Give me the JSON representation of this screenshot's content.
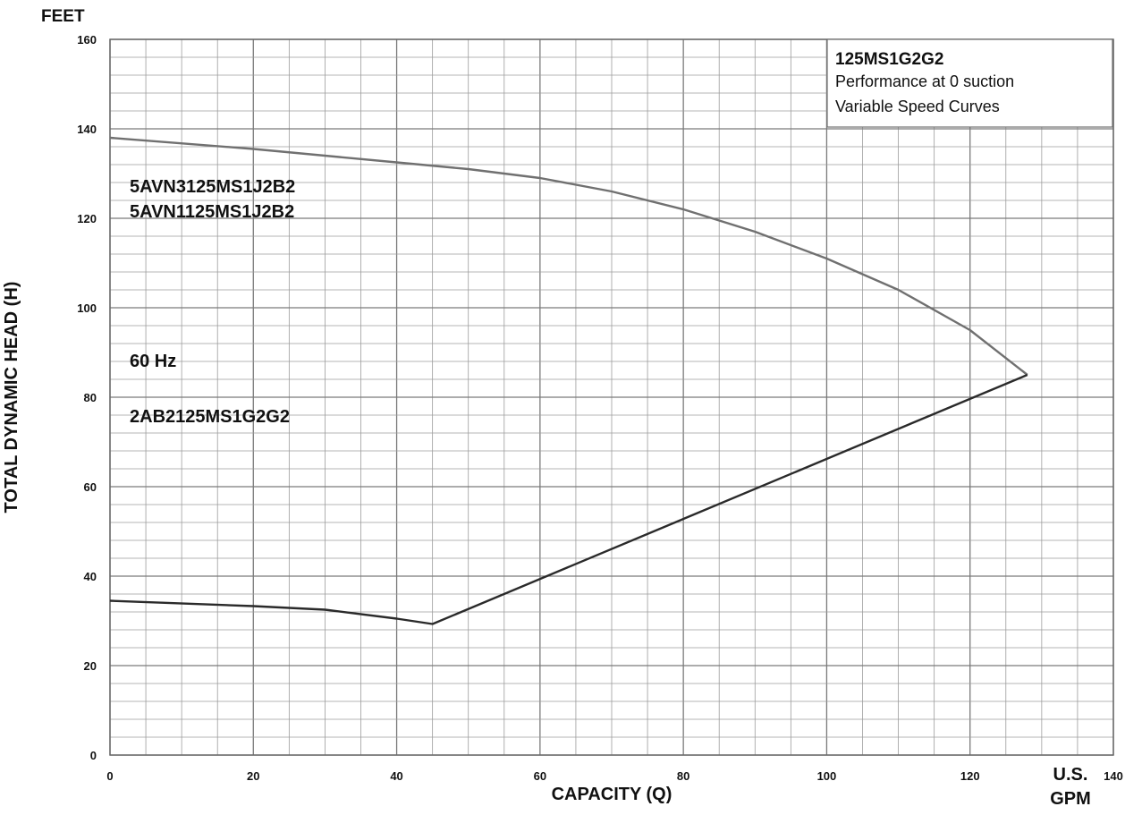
{
  "chart_data": {
    "type": "line",
    "y_unit_label": "FEET",
    "xlabel": "CAPACITY (Q)",
    "ylabel": "TOTAL DYNAMIC HEAD (H)",
    "x_unit_label": [
      "U.S.",
      "GPM"
    ],
    "xlim": [
      0,
      140
    ],
    "ylim": [
      0,
      160
    ],
    "x_major_step": 20,
    "y_major_step": 20,
    "grid": true,
    "x_ticks": [
      "0",
      "20",
      "40",
      "60",
      "80",
      "100",
      "120",
      "140"
    ],
    "y_ticks": [
      "0",
      "20",
      "40",
      "60",
      "80",
      "100",
      "120",
      "140",
      "160"
    ],
    "info_box": {
      "title": "125MS1G2G2",
      "line1": "Performance at 0 suction",
      "line2": "Variable Speed Curves"
    },
    "annotations": {
      "model_a": "5AVN3125MS1J2B2",
      "model_b": "5AVN1125MS1J2B2",
      "frequency": "60 Hz",
      "model_c": "2AB2125MS1G2G2"
    },
    "series": [
      {
        "color": "#707070",
        "points": [
          [
            0,
            138
          ],
          [
            20,
            135.5
          ],
          [
            40,
            132.5
          ],
          [
            50,
            131
          ],
          [
            60,
            129
          ],
          [
            70,
            126
          ],
          [
            80,
            122
          ],
          [
            90,
            117
          ],
          [
            100,
            111
          ],
          [
            110,
            104
          ],
          [
            120,
            95
          ],
          [
            128,
            85
          ]
        ]
      },
      {
        "color": "#2a2a2a",
        "points": [
          [
            0,
            34.5
          ],
          [
            20,
            33.3
          ],
          [
            30,
            32.5
          ],
          [
            40,
            30.5
          ],
          [
            45,
            29.3
          ],
          [
            128,
            85
          ]
        ]
      }
    ]
  }
}
